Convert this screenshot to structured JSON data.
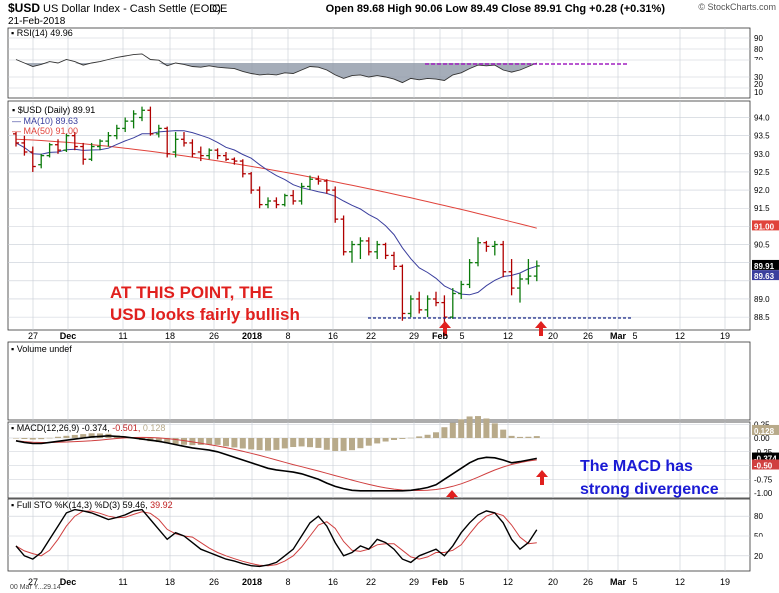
{
  "header": {
    "symbol": "$USD",
    "name": "US Dollar Index - Cash Settle (EOD)",
    "exchange": "ICE",
    "date": "21-Feb-2018",
    "brand": "© StockCharts.com",
    "quote_text": "Open 89.68 High 90.06 Low 89.49 Close 89.91 Chg +0.28 (+0.31%)"
  },
  "colors": {
    "panel_bg": "#eceef2",
    "grid": "#c8cdd6",
    "bar_up": "#0b7a0b",
    "bar_down": "#b00000",
    "ma10": "#3b3f9e",
    "ma50": "#e0433b",
    "annotation_red": "#e0201e",
    "annotation_blue": "#1a1ad4",
    "dashed_support": "#1b2a8a",
    "rsi_fill": "#8f98a8",
    "rsi_level_line": "#a020c0",
    "macd_hist": "#b8aa8a",
    "sto_k": "#000000",
    "sto_d": "#d04040"
  },
  "panels": {
    "rsi": {
      "label": "RSI(14) 49.96",
      "ticks": [
        "90",
        "80",
        "70",
        "49.96",
        "30",
        "20",
        "10"
      ]
    },
    "price": {
      "label": "$USD (Daily) 89.91",
      "ma10_label": "MA(10) 89.63",
      "ma50_label": "MA(50) 91.00",
      "ticks": [
        "94.0",
        "93.5",
        "93.0",
        "92.5",
        "92.0",
        "91.5",
        "91.00",
        "90.5",
        "89.91",
        "89.63",
        "89.0",
        "88.5"
      ]
    },
    "volume": {
      "label": "Volume undef"
    },
    "macd": {
      "label_name": "MACD(12,26,9)",
      "label_v1": "-0.374,",
      "label_v2": "-0.501,",
      "label_v3": "0.128",
      "ticks": [
        "0.25",
        "0.128",
        "0.00",
        "-0.25",
        "-0.374",
        "-0.50",
        "-0.75",
        "-1.00"
      ]
    },
    "sto": {
      "label_name": "Full STO %K(14,3) %D(3)",
      "label_v1": "59.46,",
      "label_v2": "39.92",
      "ticks": [
        "80",
        "59.46",
        "50",
        "39.92",
        "20"
      ]
    }
  },
  "x_axis": {
    "labels": [
      "27",
      "Dec",
      "11",
      "18",
      "26",
      "2018",
      "8",
      "16",
      "22",
      "29",
      "Feb",
      "5",
      "12",
      "20",
      "26",
      "Mar",
      "5",
      "12",
      "19"
    ],
    "bottom_labels": [
      "27",
      "Dec",
      "11",
      "18",
      "26",
      "2018",
      "8",
      "16",
      "22",
      "29",
      "Feb",
      "5",
      "12",
      "20",
      "26",
      "Mar",
      "5",
      "12",
      "19"
    ],
    "bottom_left_text": "00 Mar Y...29.14"
  },
  "annotations": {
    "price_note_line1": "AT THIS POINT, THE",
    "price_note_line2": "USD looks fairly bullish",
    "macd_note_line1": "The MACD has",
    "macd_note_line2": "strong divergence"
  },
  "chart_data": {
    "type": "ohlc",
    "title": "$USD US Dollar Index - Cash Settle (EOD)",
    "date": "21-Feb-2018",
    "last": {
      "open": 89.68,
      "high": 90.06,
      "low": 89.49,
      "close": 89.91,
      "change": 0.28,
      "change_pct": 0.31
    },
    "ylim": [
      88.2,
      94.4
    ],
    "support_level": 88.4,
    "ohlc": [
      [
        93.55,
        93.6,
        93.2,
        93.3
      ],
      [
        93.3,
        93.5,
        92.95,
        93.05
      ],
      [
        93.05,
        93.2,
        92.5,
        92.65
      ],
      [
        92.7,
        93.0,
        92.6,
        92.95
      ],
      [
        92.95,
        93.3,
        92.9,
        93.25
      ],
      [
        93.25,
        93.4,
        93.0,
        93.1
      ],
      [
        93.1,
        93.55,
        93.05,
        93.5
      ],
      [
        93.5,
        93.6,
        93.1,
        93.2
      ],
      [
        93.2,
        93.3,
        92.7,
        92.85
      ],
      [
        92.85,
        93.3,
        92.8,
        93.2
      ],
      [
        93.2,
        93.4,
        93.1,
        93.35
      ],
      [
        93.35,
        93.6,
        93.2,
        93.5
      ],
      [
        93.5,
        93.8,
        93.4,
        93.7
      ],
      [
        93.7,
        94.0,
        93.6,
        93.9
      ],
      [
        93.9,
        94.2,
        93.7,
        94.1
      ],
      [
        94.0,
        94.3,
        93.9,
        94.2
      ],
      [
        94.2,
        94.3,
        93.5,
        93.55
      ],
      [
        93.55,
        93.8,
        93.45,
        93.7
      ],
      [
        93.7,
        93.75,
        92.9,
        93.0
      ],
      [
        93.05,
        93.6,
        92.9,
        93.4
      ],
      [
        93.4,
        93.6,
        93.2,
        93.3
      ],
      [
        93.3,
        93.4,
        92.9,
        93.0
      ],
      [
        93.05,
        93.2,
        92.8,
        92.95
      ],
      [
        92.95,
        93.15,
        92.85,
        93.1
      ],
      [
        93.1,
        93.15,
        92.85,
        92.95
      ],
      [
        92.95,
        93.05,
        92.8,
        92.85
      ],
      [
        92.85,
        92.9,
        92.7,
        92.8
      ],
      [
        92.8,
        92.85,
        92.35,
        92.45
      ],
      [
        92.45,
        92.5,
        91.9,
        92.0
      ],
      [
        92.0,
        92.1,
        91.5,
        91.6
      ],
      [
        91.6,
        91.8,
        91.5,
        91.7
      ],
      [
        91.7,
        91.8,
        91.5,
        91.6
      ],
      [
        91.6,
        91.9,
        91.55,
        91.85
      ],
      [
        91.85,
        92.0,
        91.6,
        91.7
      ],
      [
        91.7,
        92.2,
        91.6,
        92.1
      ],
      [
        92.1,
        92.4,
        92.0,
        92.3
      ],
      [
        92.3,
        92.4,
        92.15,
        92.25
      ],
      [
        92.25,
        92.3,
        91.9,
        92.0
      ],
      [
        92.0,
        92.1,
        91.1,
        91.2
      ],
      [
        91.2,
        91.3,
        90.2,
        90.3
      ],
      [
        90.3,
        90.6,
        90.0,
        90.5
      ],
      [
        90.5,
        90.7,
        90.1,
        90.6
      ],
      [
        90.6,
        90.7,
        90.2,
        90.3
      ],
      [
        90.3,
        90.6,
        90.1,
        90.5
      ],
      [
        90.5,
        90.55,
        90.1,
        90.2
      ],
      [
        90.2,
        90.3,
        89.8,
        89.9
      ],
      [
        89.9,
        89.95,
        88.4,
        88.6
      ],
      [
        88.6,
        89.1,
        88.5,
        89.0
      ],
      [
        89.0,
        89.2,
        88.6,
        88.7
      ],
      [
        88.7,
        89.1,
        88.5,
        89.0
      ],
      [
        89.0,
        89.2,
        88.8,
        88.9
      ],
      [
        88.9,
        89.1,
        88.3,
        88.5
      ],
      [
        88.5,
        89.3,
        88.45,
        89.15
      ],
      [
        89.15,
        89.5,
        89.0,
        89.4
      ],
      [
        89.4,
        90.1,
        89.3,
        90.0
      ],
      [
        90.0,
        90.7,
        89.9,
        90.55
      ],
      [
        90.55,
        90.6,
        90.3,
        90.45
      ],
      [
        90.45,
        90.6,
        90.2,
        90.5
      ],
      [
        90.5,
        90.6,
        89.6,
        89.75
      ],
      [
        89.75,
        90.1,
        89.1,
        89.3
      ],
      [
        89.3,
        89.7,
        88.9,
        89.55
      ],
      [
        89.55,
        90.1,
        89.4,
        89.63
      ],
      [
        89.63,
        90.06,
        89.49,
        89.91
      ]
    ]
  }
}
